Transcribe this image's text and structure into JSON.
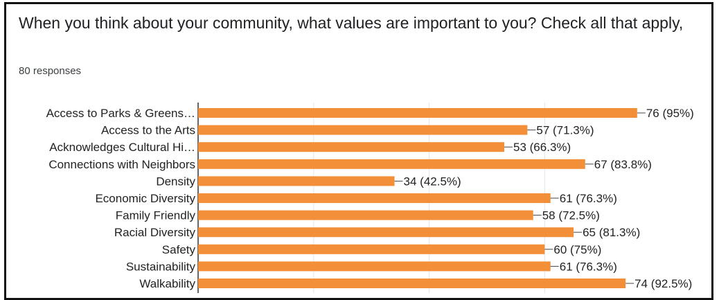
{
  "question": {
    "title": "When you think about your community, what values are important to you? Check all that apply,",
    "responses": "80 responses"
  },
  "colors": {
    "bar": "#f28f38",
    "grid": "#e6e6e6",
    "axis": "#333333",
    "text": "#222222"
  },
  "chart_data": {
    "type": "bar",
    "orientation": "horizontal",
    "categories": [
      "Access to Parks & Greens…",
      "Access to the Arts",
      "Acknowledges Cultural Hi…",
      "Connections with Neighbors",
      "Density",
      "Economic Diversity",
      "Family Friendly",
      "Racial Diversity",
      "Safety",
      "Sustainability",
      "Walkability"
    ],
    "values": [
      76,
      57,
      53,
      67,
      34,
      61,
      58,
      65,
      60,
      61,
      74
    ],
    "data_labels": [
      "76 (95%)",
      "57 (71.3%)",
      "53 (66.3%)",
      "67 (83.8%)",
      "34 (42.5%)",
      "61 (76.3%)",
      "58 (72.5%)",
      "65 (81.3%)",
      "60 (75%)",
      "61 (76.3%)",
      "74 (92.5%)"
    ],
    "xlim": [
      0,
      80
    ],
    "grid": true,
    "title": "",
    "xlabel": "",
    "ylabel": ""
  }
}
